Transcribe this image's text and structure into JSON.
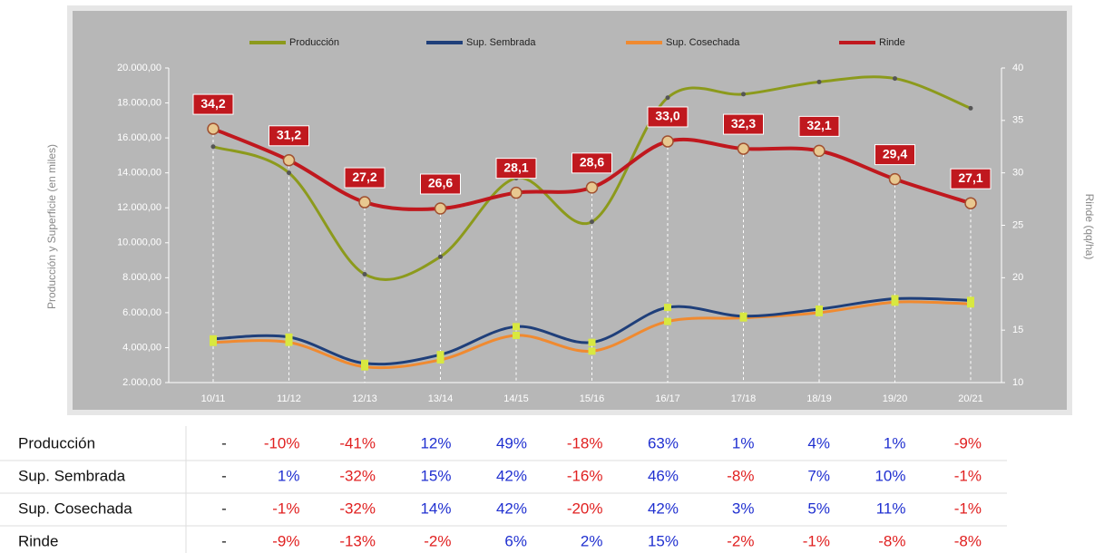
{
  "chart_data": {
    "type": "line",
    "categories": [
      "10/11",
      "11/12",
      "12/13",
      "13/14",
      "14/15",
      "15/16",
      "16/17",
      "17/18",
      "18/19",
      "19/20",
      "20/21"
    ],
    "series": [
      {
        "name": "Producción",
        "color": "#8c9a1c",
        "values": [
          15500,
          14000,
          8200,
          9200,
          13700,
          11200,
          18300,
          18500,
          19200,
          19400,
          17700
        ]
      },
      {
        "name": "Sup. Sembrada",
        "color": "#1f3f7a",
        "values": [
          4500,
          4600,
          3100,
          3600,
          5200,
          4300,
          6300,
          5800,
          6200,
          6800,
          6700
        ]
      },
      {
        "name": "Sup. Cosechada",
        "color": "#f08a30",
        "values": [
          4300,
          4300,
          2900,
          3300,
          4700,
          3800,
          5500,
          5700,
          6000,
          6600,
          6500
        ]
      },
      {
        "name": "Rinde",
        "color": "#c0181e",
        "axis": "y2",
        "values": [
          34.2,
          31.2,
          27.2,
          26.6,
          28.1,
          28.6,
          33.0,
          32.3,
          32.1,
          29.4,
          27.1
        ],
        "value_labels": [
          "34,2",
          "31,2",
          "27,2",
          "26,6",
          "28,1",
          "28,6",
          "33,0",
          "32,3",
          "32,1",
          "29,4",
          "27,1"
        ]
      }
    ],
    "ylabel": "Producción y Superficie (en miles)",
    "y2label": "Rinde (qq/ha)",
    "ylim": [
      2000,
      20000
    ],
    "yticks": [
      {
        "value": 2000,
        "label": "2.000,00"
      },
      {
        "value": 4000,
        "label": "4.000,00"
      },
      {
        "value": 6000,
        "label": "6.000,00"
      },
      {
        "value": 8000,
        "label": "8.000,00"
      },
      {
        "value": 10000,
        "label": "10.000,00"
      },
      {
        "value": 12000,
        "label": "12.000,00"
      },
      {
        "value": 14000,
        "label": "14.000,00"
      },
      {
        "value": 16000,
        "label": "16.000,00"
      },
      {
        "value": 18000,
        "label": "18.000,00"
      },
      {
        "value": 20000,
        "label": "20.000,00"
      }
    ],
    "y2lim": [
      10,
      40
    ],
    "y2ticks": [
      10,
      15,
      20,
      25,
      30,
      35,
      40
    ],
    "legend": "top"
  },
  "table": {
    "rows": [
      {
        "label": "Producción",
        "cells": [
          "-",
          "-10%",
          "-41%",
          "12%",
          "49%",
          "-18%",
          "63%",
          "1%",
          "4%",
          "1%",
          "-9%"
        ]
      },
      {
        "label": "Sup. Sembrada",
        "cells": [
          "-",
          "1%",
          "-32%",
          "15%",
          "42%",
          "-16%",
          "46%",
          "-8%",
          "7%",
          "10%",
          "-1%"
        ]
      },
      {
        "label": "Sup. Cosechada",
        "cells": [
          "-",
          "-1%",
          "-32%",
          "14%",
          "42%",
          "-20%",
          "42%",
          "3%",
          "5%",
          "11%",
          "-1%"
        ]
      },
      {
        "label": "Rinde",
        "cells": [
          "-",
          "-9%",
          "-13%",
          "-2%",
          "6%",
          "2%",
          "15%",
          "-2%",
          "-1%",
          "-8%",
          "-8%"
        ]
      }
    ]
  }
}
